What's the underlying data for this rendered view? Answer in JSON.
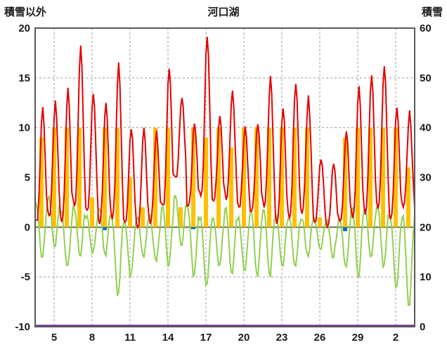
{
  "chart_data": {
    "type": "line",
    "title": "河口湖",
    "left_axis": {
      "label": "積雪以外",
      "min": -10,
      "max": 20,
      "tick_step": 5,
      "ticks": [
        20,
        15,
        10,
        5,
        0,
        -5,
        -10
      ]
    },
    "right_axis": {
      "label": "積雪",
      "min": 0,
      "max": 60,
      "tick_step": 10,
      "ticks": [
        60,
        50,
        40,
        30,
        20,
        10,
        0
      ]
    },
    "x_ticks": [
      "5",
      "8",
      "11",
      "14",
      "17",
      "20",
      "23",
      "26",
      "29",
      "2"
    ],
    "x_tick_day_indices": [
      1,
      4,
      7,
      10,
      13,
      16,
      19,
      22,
      25,
      28
    ],
    "num_days": 30,
    "grid": {
      "color": "#9e9e9e",
      "zero_line_color": "#6b6b4f",
      "frame_color": "#595959",
      "text_color": "#1a1a1a"
    },
    "series": [
      {
        "name": "temperature-line",
        "type": "line",
        "axis": "left",
        "color": "#e60000",
        "daily_max": [
          12,
          12.5,
          14,
          18,
          13.5,
          12.5,
          16.5,
          10,
          10,
          9.5,
          16,
          13,
          10.5,
          19.3,
          11,
          13.5,
          10,
          10.5,
          15,
          12,
          14.5,
          13,
          7,
          6.5,
          9.5,
          14,
          15.5,
          16.2,
          12,
          11.5
        ],
        "daily_min": [
          0.5,
          1,
          0.5,
          2,
          1.5,
          0.5,
          1,
          0.5,
          0,
          0.5,
          2,
          5,
          2,
          3,
          2.5,
          3,
          2,
          1.5,
          2,
          0.5,
          1,
          1.5,
          0.5,
          0,
          0.5,
          1,
          1.5,
          2,
          1,
          2
        ]
      },
      {
        "name": "secondary-temperature-line",
        "type": "line",
        "axis": "left",
        "color": "#92d050",
        "daily_max": [
          2.5,
          3,
          1.5,
          2,
          1,
          2,
          1,
          0.5,
          1,
          1,
          2,
          3,
          2,
          1,
          1,
          2,
          1,
          1.5,
          2,
          1,
          1,
          1,
          1,
          0.5,
          1,
          2,
          2,
          2,
          1,
          1
        ],
        "daily_min": [
          -3,
          -2,
          -4,
          -3,
          -2.5,
          -3,
          -7,
          -5,
          -3,
          -3.5,
          -4,
          -2,
          -5,
          -6,
          -4,
          -5,
          -4.5,
          -5,
          -5,
          -4,
          -4,
          -3,
          -2.5,
          -3,
          -4,
          -5,
          -3,
          -4,
          -6,
          -8
        ]
      },
      {
        "name": "sunshine-bars",
        "type": "bar",
        "axis": "left",
        "color": "#ffc000",
        "values": [
          9,
          10,
          10,
          10,
          3,
          10,
          10,
          5,
          2,
          10,
          10,
          2,
          10,
          9,
          10,
          8,
          10,
          10,
          10,
          10,
          10,
          10,
          1,
          0,
          9,
          10,
          10,
          10,
          10,
          6
        ]
      },
      {
        "name": "precipitation-bars",
        "type": "bar-down",
        "axis": "left",
        "color": "#0070c0",
        "values": [
          0,
          0,
          0,
          0,
          0,
          0.3,
          0,
          0,
          0,
          0,
          0,
          0,
          0.2,
          0,
          0,
          0,
          0,
          0,
          0,
          0,
          0,
          0,
          0,
          0,
          0.4,
          0,
          0,
          0,
          0,
          0
        ]
      },
      {
        "name": "snow-depth-line",
        "type": "flat-line",
        "axis": "right",
        "color": "#7030a0",
        "value": 0
      }
    ]
  }
}
